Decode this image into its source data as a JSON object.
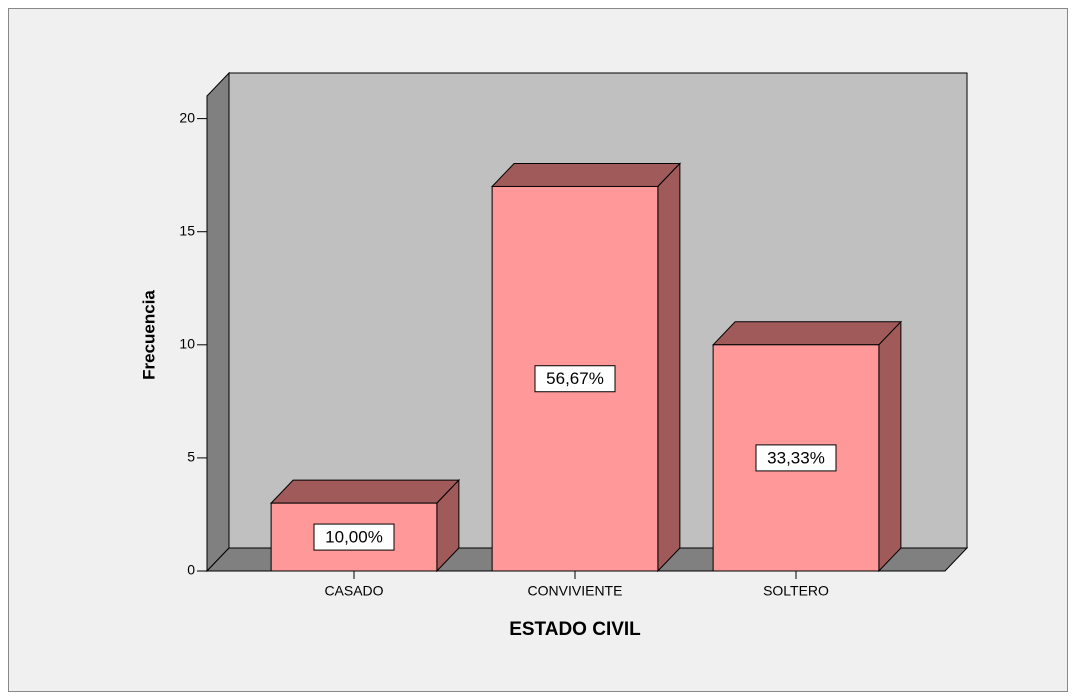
{
  "chart_data": {
    "type": "bar3d",
    "xlabel": "ESTADO CIVIL",
    "ylabel": "Frecuencia",
    "categories": [
      "CASADO",
      "CONVIVIENTE",
      "SOLTERO"
    ],
    "values": [
      3,
      17,
      10
    ],
    "percentages": [
      10.0,
      56.67,
      33.33
    ],
    "percentage_labels": [
      "10,00%",
      "56,67%",
      "33,33%"
    ],
    "color": "#ff9999",
    "shade_color": "#a05a5a",
    "ylim": [
      0,
      21
    ],
    "yticks": [
      0,
      5,
      10,
      15,
      20
    ]
  }
}
